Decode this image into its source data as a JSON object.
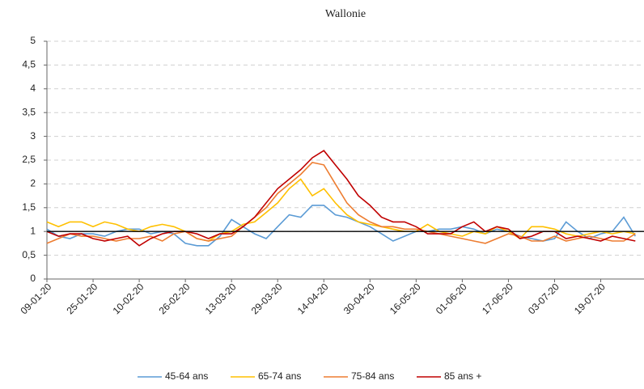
{
  "chart_data": {
    "type": "line",
    "title": "Wallonie",
    "x": [
      "09-01-20",
      "13-01-20",
      "17-01-20",
      "21-01-20",
      "25-01-20",
      "29-01-20",
      "02-02-20",
      "06-02-20",
      "10-02-20",
      "14-02-20",
      "18-02-20",
      "22-02-20",
      "26-02-20",
      "01-03-20",
      "05-03-20",
      "09-03-20",
      "13-03-20",
      "17-03-20",
      "21-03-20",
      "25-03-20",
      "29-03-20",
      "02-04-20",
      "06-04-20",
      "10-04-20",
      "14-04-20",
      "18-04-20",
      "22-04-20",
      "26-04-20",
      "30-04-20",
      "04-05-20",
      "08-05-20",
      "12-05-20",
      "16-05-20",
      "20-05-20",
      "24-05-20",
      "28-05-20",
      "01-06-20",
      "05-06-20",
      "09-06-20",
      "13-06-20",
      "17-06-20",
      "21-06-20",
      "25-06-20",
      "29-06-20",
      "03-07-20",
      "07-07-20",
      "11-07-20",
      "15-07-20",
      "19-07-20",
      "23-07-20",
      "27-07-20",
      "31-07-20"
    ],
    "series": [
      {
        "name": "45-64 ans",
        "color": "#5b9bd5",
        "values": [
          1.05,
          0.9,
          0.85,
          0.95,
          0.95,
          0.9,
          1.0,
          1.05,
          1.05,
          0.95,
          1.0,
          0.95,
          0.75,
          0.7,
          0.7,
          0.9,
          1.25,
          1.1,
          0.95,
          0.85,
          1.1,
          1.35,
          1.3,
          1.55,
          1.55,
          1.35,
          1.3,
          1.2,
          1.1,
          0.95,
          0.8,
          0.9,
          1.0,
          1.0,
          1.05,
          1.05,
          1.1,
          1.05,
          0.95,
          1.05,
          1.0,
          0.9,
          0.85,
          0.8,
          0.85,
          1.2,
          1.0,
          0.85,
          0.95,
          1.0,
          1.3,
          0.9
        ]
      },
      {
        "name": "65-74 ans",
        "color": "#ffc000",
        "values": [
          1.2,
          1.1,
          1.2,
          1.2,
          1.1,
          1.2,
          1.15,
          1.05,
          1.0,
          1.1,
          1.15,
          1.1,
          1.0,
          0.85,
          0.8,
          0.95,
          1.0,
          1.15,
          1.2,
          1.4,
          1.6,
          1.9,
          2.1,
          1.75,
          1.9,
          1.6,
          1.35,
          1.2,
          1.15,
          1.1,
          1.05,
          1.0,
          1.0,
          1.15,
          1.0,
          0.95,
          0.9,
          1.0,
          0.95,
          1.1,
          1.0,
          0.85,
          1.1,
          1.1,
          1.05,
          0.95,
          0.9,
          0.95,
          1.0,
          0.95,
          1.0,
          0.95
        ]
      },
      {
        "name": "75-84 ans",
        "color": "#ed7d31",
        "values": [
          0.75,
          0.85,
          0.95,
          0.9,
          0.9,
          0.85,
          0.8,
          0.85,
          0.85,
          0.9,
          0.8,
          0.95,
          1.0,
          0.85,
          0.8,
          0.85,
          0.9,
          1.1,
          1.3,
          1.5,
          1.8,
          2.0,
          2.2,
          2.45,
          2.4,
          2.0,
          1.6,
          1.35,
          1.2,
          1.1,
          1.1,
          1.05,
          1.05,
          1.0,
          0.95,
          0.9,
          0.85,
          0.8,
          0.75,
          0.85,
          0.95,
          0.9,
          0.8,
          0.8,
          0.9,
          0.8,
          0.85,
          0.9,
          0.85,
          0.8,
          0.8,
          0.95
        ]
      },
      {
        "name": "85 ans +",
        "color": "#c00000",
        "values": [
          1.0,
          0.9,
          0.95,
          0.95,
          0.85,
          0.8,
          0.85,
          0.9,
          0.7,
          0.85,
          0.95,
          1.0,
          1.0,
          0.95,
          0.85,
          0.95,
          0.95,
          1.1,
          1.3,
          1.6,
          1.9,
          2.1,
          2.3,
          2.55,
          2.7,
          2.4,
          2.1,
          1.75,
          1.55,
          1.3,
          1.2,
          1.2,
          1.1,
          0.95,
          0.95,
          0.95,
          1.1,
          1.2,
          1.0,
          1.1,
          1.05,
          0.85,
          0.9,
          1.0,
          1.0,
          0.85,
          0.9,
          0.85,
          0.8,
          0.9,
          0.85,
          0.8
        ]
      }
    ],
    "xlim": [
      "09-01-20",
      "03-08-20"
    ],
    "xticks": [
      "09-01-20",
      "25-01-20",
      "10-02-20",
      "26-02-20",
      "13-03-20",
      "29-03-20",
      "14-04-20",
      "30-04-20",
      "16-05-20",
      "01-06-20",
      "17-06-20",
      "03-07-20",
      "19-07-20"
    ],
    "ylim": [
      0,
      5
    ],
    "yticks": [
      0,
      {
        "value": 0.5,
        "label": "0,5"
      },
      1,
      {
        "value": 1.5,
        "label": "1,5"
      },
      2,
      {
        "value": 2.5,
        "label": "2,5"
      },
      3,
      {
        "value": 3.5,
        "label": "3,5"
      },
      4,
      {
        "value": 4.5,
        "label": "4,5"
      },
      5
    ],
    "reference_line": 1,
    "grid": true,
    "legend": "bottom"
  }
}
